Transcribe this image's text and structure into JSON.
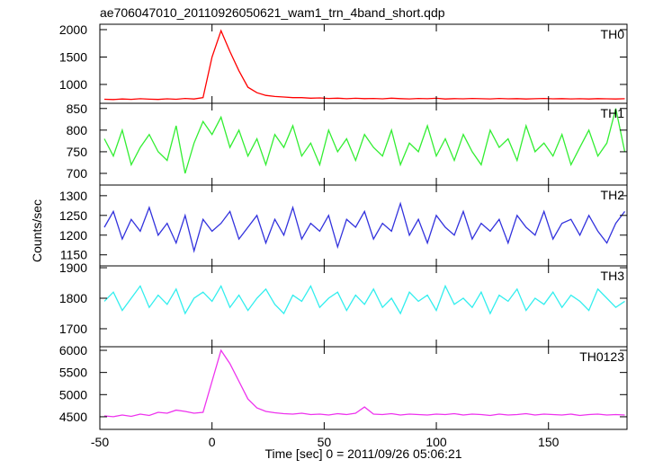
{
  "chart_data": [
    {
      "type": "line",
      "title": "ae706047010_20110926050621_wam1_trn_4band_short.qdp",
      "ylabel": "Counts/sec",
      "x": [
        -48,
        -44,
        -40,
        -36,
        -32,
        -28,
        -24,
        -20,
        -16,
        -12,
        -8,
        -4,
        0,
        4,
        8,
        12,
        16,
        20,
        24,
        28,
        32,
        36,
        40,
        44,
        48,
        52,
        56,
        60,
        64,
        68,
        72,
        76,
        80,
        84,
        88,
        92,
        96,
        100,
        104,
        108,
        112,
        116,
        120,
        124,
        128,
        132,
        136,
        140,
        144,
        148,
        152,
        156,
        160,
        164,
        168,
        172,
        176,
        180,
        184
      ],
      "series": [
        {
          "name": "TH0",
          "color": "#ff0000",
          "values": [
            730,
            725,
            735,
            728,
            740,
            732,
            726,
            738,
            730,
            745,
            735,
            760,
            1500,
            1980,
            1600,
            1250,
            950,
            850,
            800,
            780,
            770,
            760,
            760,
            750,
            755,
            745,
            750,
            740,
            748,
            742,
            745,
            738,
            750,
            742,
            736,
            745,
            740,
            748,
            735,
            742,
            738,
            745,
            740,
            736,
            744,
            738,
            742,
            735,
            740,
            745,
            738,
            742,
            736,
            740,
            735,
            742,
            738,
            735,
            740
          ]
        }
      ],
      "xlim": [
        -50,
        185
      ],
      "xticks": [
        -50,
        0,
        50,
        100,
        150
      ],
      "ylim": [
        656,
        2098
      ],
      "yticks": [
        1000,
        1500,
        2000
      ]
    },
    {
      "type": "line",
      "x": [
        -48,
        -44,
        -40,
        -36,
        -32,
        -28,
        -24,
        -20,
        -16,
        -12,
        -8,
        -4,
        0,
        4,
        8,
        12,
        16,
        20,
        24,
        28,
        32,
        36,
        40,
        44,
        48,
        52,
        56,
        60,
        64,
        68,
        72,
        76,
        80,
        84,
        88,
        92,
        96,
        100,
        104,
        108,
        112,
        116,
        120,
        124,
        128,
        132,
        136,
        140,
        144,
        148,
        152,
        156,
        160,
        164,
        168,
        172,
        176,
        180,
        184
      ],
      "series": [
        {
          "name": "TH1",
          "color": "#33ee33",
          "values": [
            780,
            740,
            800,
            720,
            760,
            790,
            750,
            730,
            810,
            700,
            770,
            820,
            790,
            830,
            760,
            800,
            740,
            780,
            720,
            790,
            760,
            810,
            740,
            770,
            720,
            800,
            750,
            780,
            730,
            790,
            760,
            740,
            800,
            720,
            770,
            750,
            810,
            740,
            780,
            730,
            790,
            750,
            720,
            800,
            760,
            780,
            730,
            810,
            750,
            770,
            740,
            790,
            720,
            760,
            800,
            740,
            770,
            850,
            750
          ]
        }
      ],
      "xlim": [
        -50,
        185
      ],
      "xticks": [
        -50,
        0,
        50,
        100,
        150
      ],
      "ylim": [
        673,
        862
      ],
      "yticks": [
        700,
        750,
        800,
        850
      ]
    },
    {
      "type": "line",
      "x": [
        -48,
        -44,
        -40,
        -36,
        -32,
        -28,
        -24,
        -20,
        -16,
        -12,
        -8,
        -4,
        0,
        4,
        8,
        12,
        16,
        20,
        24,
        28,
        32,
        36,
        40,
        44,
        48,
        52,
        56,
        60,
        64,
        68,
        72,
        76,
        80,
        84,
        88,
        92,
        96,
        100,
        104,
        108,
        112,
        116,
        120,
        124,
        128,
        132,
        136,
        140,
        144,
        148,
        152,
        156,
        160,
        164,
        168,
        172,
        176,
        180,
        184
      ],
      "series": [
        {
          "name": "TH2",
          "color": "#3333dd",
          "values": [
            1220,
            1260,
            1190,
            1240,
            1210,
            1270,
            1200,
            1230,
            1180,
            1250,
            1160,
            1240,
            1210,
            1230,
            1260,
            1190,
            1220,
            1250,
            1180,
            1240,
            1200,
            1270,
            1190,
            1230,
            1210,
            1250,
            1170,
            1240,
            1220,
            1260,
            1190,
            1230,
            1210,
            1280,
            1200,
            1240,
            1180,
            1250,
            1220,
            1200,
            1260,
            1190,
            1230,
            1210,
            1240,
            1180,
            1250,
            1220,
            1200,
            1260,
            1190,
            1230,
            1240,
            1200,
            1250,
            1210,
            1180,
            1230,
            1260
          ]
        }
      ],
      "xlim": [
        -50,
        185
      ],
      "xticks": [
        -50,
        0,
        50,
        100,
        150
      ],
      "ylim": [
        1122,
        1327
      ],
      "yticks": [
        1150,
        1200,
        1250,
        1300
      ]
    },
    {
      "type": "line",
      "x": [
        -48,
        -44,
        -40,
        -36,
        -32,
        -28,
        -24,
        -20,
        -16,
        -12,
        -8,
        -4,
        0,
        4,
        8,
        12,
        16,
        20,
        24,
        28,
        32,
        36,
        40,
        44,
        48,
        52,
        56,
        60,
        64,
        68,
        72,
        76,
        80,
        84,
        88,
        92,
        96,
        100,
        104,
        108,
        112,
        116,
        120,
        124,
        128,
        132,
        136,
        140,
        144,
        148,
        152,
        156,
        160,
        164,
        168,
        172,
        176,
        180,
        184
      ],
      "series": [
        {
          "name": "TH3",
          "color": "#33eeee",
          "values": [
            1790,
            1820,
            1760,
            1800,
            1840,
            1770,
            1810,
            1780,
            1830,
            1750,
            1800,
            1820,
            1790,
            1840,
            1770,
            1810,
            1760,
            1800,
            1830,
            1780,
            1750,
            1810,
            1790,
            1840,
            1770,
            1800,
            1820,
            1760,
            1810,
            1780,
            1830,
            1770,
            1800,
            1750,
            1820,
            1790,
            1810,
            1760,
            1840,
            1780,
            1800,
            1770,
            1820,
            1750,
            1810,
            1790,
            1830,
            1760,
            1800,
            1780,
            1820,
            1770,
            1810,
            1790,
            1760,
            1830,
            1800,
            1770,
            1790
          ]
        }
      ],
      "xlim": [
        -50,
        185
      ],
      "xticks": [
        -50,
        0,
        50,
        100,
        150
      ],
      "ylim": [
        1641,
        1906
      ],
      "yticks": [
        1700,
        1800,
        1900
      ]
    },
    {
      "type": "line",
      "xlabel": "Time [sec] 0 = 2011/09/26 05:06:21",
      "x": [
        -48,
        -44,
        -40,
        -36,
        -32,
        -28,
        -24,
        -20,
        -16,
        -12,
        -8,
        -4,
        0,
        4,
        8,
        12,
        16,
        20,
        24,
        28,
        32,
        36,
        40,
        44,
        48,
        52,
        56,
        60,
        64,
        68,
        72,
        76,
        80,
        84,
        88,
        92,
        96,
        100,
        104,
        108,
        112,
        116,
        120,
        124,
        128,
        132,
        136,
        140,
        144,
        148,
        152,
        156,
        160,
        164,
        168,
        172,
        176,
        180,
        184
      ],
      "series": [
        {
          "name": "TH0123",
          "color": "#ee33ee",
          "values": [
            4520,
            4500,
            4540,
            4510,
            4560,
            4530,
            4600,
            4580,
            4650,
            4620,
            4580,
            4600,
            5300,
            6000,
            5700,
            5300,
            4900,
            4700,
            4620,
            4590,
            4570,
            4560,
            4580,
            4550,
            4560,
            4540,
            4570,
            4550,
            4580,
            4720,
            4560,
            4550,
            4570,
            4540,
            4560,
            4550,
            4540,
            4560,
            4550,
            4570,
            4540,
            4560,
            4550,
            4530,
            4560,
            4540,
            4550,
            4570,
            4540,
            4560,
            4550,
            4540,
            4560,
            4530,
            4550,
            4560,
            4540,
            4550,
            4540
          ]
        }
      ],
      "xlim": [
        -50,
        185
      ],
      "xticks": [
        -50,
        0,
        50,
        100,
        150
      ],
      "ylim": [
        4215,
        6081
      ],
      "yticks": [
        4500,
        5000,
        5500,
        6000
      ]
    }
  ]
}
